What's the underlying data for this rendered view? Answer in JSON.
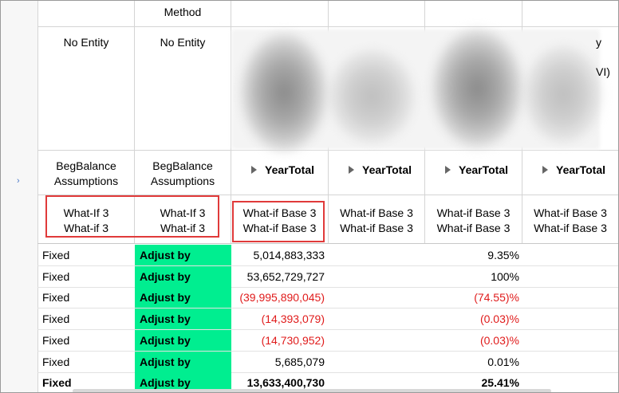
{
  "header": {
    "method_label": "Method",
    "entity_1": "No Entity",
    "entity_2": "No Entity",
    "edge_fragment_1": "y",
    "edge_fragment_2": "VI)",
    "account_1": [
      "BegBalance",
      "Assumptions"
    ],
    "account_2": [
      "BegBalance",
      "Assumptions"
    ],
    "year_labels": [
      "YearTotal",
      "YearTotal",
      "YearTotal",
      "YearTotal"
    ],
    "scenario_1": [
      "What-If 3",
      "What-if 3"
    ],
    "scenario_2": [
      "What-If 3",
      "What-if 3"
    ],
    "scenario_3": [
      "What-if Base 3",
      "What-if Base 3"
    ],
    "scenario_4": [
      "What-if Base 3",
      "What-if Base 3"
    ],
    "scenario_5": [
      "What-if Base 3",
      "What-if Base 3"
    ],
    "scenario_6": [
      "What-if Base 3",
      "What-if Base 3"
    ]
  },
  "rows": [
    {
      "col1": "Fixed",
      "col2": "Adjust by",
      "col3": "5,014,883,333",
      "col5": "9.35%",
      "neg": false,
      "bold": false
    },
    {
      "col1": "Fixed",
      "col2": "Adjust by",
      "col3": "53,652,729,727",
      "col5": "100%",
      "neg": false,
      "bold": false
    },
    {
      "col1": "Fixed",
      "col2": "Adjust by",
      "col3": "(39,995,890,045)",
      "col5": "(74.55)%",
      "neg": true,
      "bold": false
    },
    {
      "col1": "Fixed",
      "col2": "Adjust by",
      "col3": "(14,393,079)",
      "col5": "(0.03)%",
      "neg": true,
      "bold": false
    },
    {
      "col1": "Fixed",
      "col2": "Adjust by",
      "col3": "(14,730,952)",
      "col5": "(0.03)%",
      "neg": true,
      "bold": false
    },
    {
      "col1": "Fixed",
      "col2": "Adjust by",
      "col3": "5,685,079",
      "col5": "0.01%",
      "neg": false,
      "bold": false
    },
    {
      "col1": "Fixed",
      "col2": "Adjust by",
      "col3": "13,633,400,730",
      "col5": "25.41%",
      "neg": false,
      "bold": true
    }
  ],
  "colors": {
    "accent_green": "#00ee90",
    "negative_red": "#e01b1b",
    "highlight_box": "#e03a3a"
  }
}
